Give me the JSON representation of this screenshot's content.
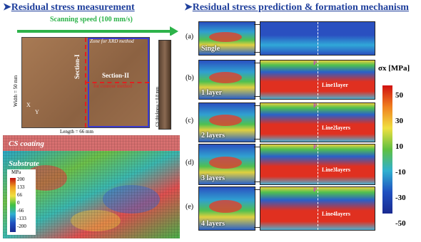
{
  "left": {
    "title": "Residual stress measurement",
    "scan_label": "Scanning speed (100 mm/s)",
    "zone_label": "Zone for XRD method",
    "section1": "Section-I",
    "section2": "Section-II",
    "contour_label": "for contour method",
    "width_label": "Width = 50 mm",
    "length_label": "Length = 66 mm",
    "thickness_label": "CS thickness = 0.8 mm",
    "axis_x": "X",
    "axis_y": "Y",
    "cs_coating": "CS coating",
    "substrate": "Substrate",
    "cbar_title": "MPa",
    "cbar_ticks": [
      "200",
      "133",
      "66",
      "0",
      "-66",
      "-133",
      "-200"
    ]
  },
  "right": {
    "title": "Residual stress prediction & formation mechanism",
    "panels": [
      {
        "letter": "(a)",
        "layer": "Single",
        "line": ""
      },
      {
        "letter": "(b)",
        "layer": "1 layer",
        "line": "Line1layer"
      },
      {
        "letter": "(c)",
        "layer": "2 layers",
        "line": "Line2layers"
      },
      {
        "letter": "(d)",
        "layer": "3 layers",
        "line": "Line3layers"
      },
      {
        "letter": "(e)",
        "layer": "4 layers",
        "line": "Line4layers"
      }
    ],
    "point_label": "P",
    "cbar_title": "σx [MPa]",
    "cbar_ticks": [
      "50",
      "30",
      "10",
      "-10",
      "-30",
      "-50"
    ]
  },
  "colors": {
    "heading": "#1f3f9c",
    "scan_arrow": "#2db34a",
    "section": "#e02020"
  }
}
